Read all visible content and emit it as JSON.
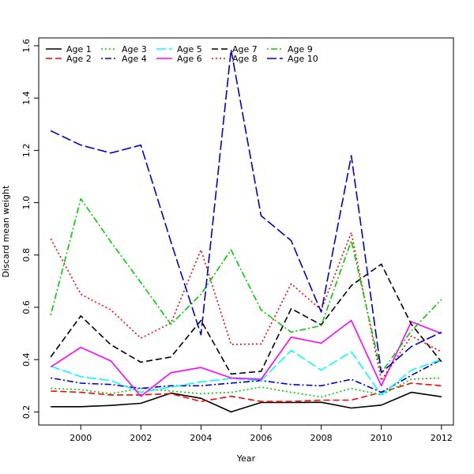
{
  "chart_data": {
    "type": "line",
    "title": "",
    "xlabel": "Year",
    "ylabel": "Discard mean weight",
    "x": [
      1999,
      2000,
      2001,
      2002,
      2003,
      2004,
      2005,
      2006,
      2007,
      2008,
      2009,
      2010,
      2011,
      2012
    ],
    "xlim": [
      1998.6,
      2012.4
    ],
    "ylim": [
      0.15,
      1.63
    ],
    "xticks": [
      2000,
      2002,
      2004,
      2006,
      2008,
      2010,
      2012
    ],
    "yticks": [
      0.2,
      0.4,
      0.6,
      0.8,
      1.0,
      1.2,
      1.4,
      1.6
    ],
    "xtick_labels": [
      "2000",
      "2002",
      "2004",
      "2006",
      "2008",
      "2010",
      "2012"
    ],
    "ytick_labels": [
      "0.2",
      "0.4",
      "0.6",
      "0.8",
      "1.0",
      "1.2",
      "1.4",
      "1.6"
    ],
    "legend_position": "top-left",
    "grid": false,
    "series": [
      {
        "name": "Age 1",
        "color": "#000000",
        "dash": "solid",
        "values": [
          0.22,
          0.22,
          0.225,
          0.233,
          0.272,
          0.252,
          0.2,
          0.236,
          0.236,
          0.237,
          0.215,
          0.226,
          0.275,
          0.258
        ]
      },
      {
        "name": "Age 2",
        "color": "#ff0000",
        "dash": "dashed",
        "values": [
          0.28,
          0.275,
          0.265,
          0.265,
          0.27,
          0.24,
          0.26,
          0.24,
          0.24,
          0.245,
          0.245,
          0.275,
          0.31,
          0.3
        ]
      },
      {
        "name": "Age 3",
        "color": "#00cd00",
        "dash": "dotted",
        "values": [
          0.29,
          0.285,
          0.27,
          0.29,
          0.28,
          0.27,
          0.275,
          0.295,
          0.275,
          0.257,
          0.29,
          0.265,
          0.325,
          0.33
        ]
      },
      {
        "name": "Age 4",
        "color": "#0000cd",
        "dash": "dotdash",
        "values": [
          0.33,
          0.31,
          0.305,
          0.29,
          0.3,
          0.3,
          0.31,
          0.32,
          0.305,
          0.3,
          0.325,
          0.275,
          0.34,
          0.4
        ]
      },
      {
        "name": "Age 5",
        "color": "#00ffff",
        "dash": "longdash",
        "values": [
          0.375,
          0.335,
          0.32,
          0.275,
          0.295,
          0.315,
          0.328,
          0.32,
          0.435,
          0.36,
          0.43,
          0.265,
          0.36,
          0.4
        ]
      },
      {
        "name": "Age 6",
        "color": "#ff00ff",
        "dash": "solid",
        "values": [
          0.372,
          0.447,
          0.395,
          0.26,
          0.35,
          0.37,
          0.33,
          0.325,
          0.486,
          0.463,
          0.55,
          0.3,
          0.545,
          0.5
        ]
      },
      {
        "name": "Age 7",
        "color": "#000000",
        "dash": "dashed",
        "values": [
          0.41,
          0.567,
          0.457,
          0.39,
          0.41,
          0.55,
          0.345,
          0.355,
          0.595,
          0.533,
          0.683,
          0.765,
          0.535,
          0.392
        ]
      },
      {
        "name": "Age 8",
        "color": "#ff0000",
        "dash": "dotted",
        "values": [
          0.862,
          0.65,
          0.59,
          0.482,
          0.54,
          0.82,
          0.458,
          0.46,
          0.69,
          0.59,
          0.886,
          0.32,
          0.49,
          0.43
        ]
      },
      {
        "name": "Age 9",
        "color": "#00cd00",
        "dash": "dotdash",
        "values": [
          0.57,
          1.015,
          0.85,
          0.695,
          0.535,
          0.65,
          0.82,
          0.59,
          0.505,
          0.53,
          0.855,
          0.35,
          0.51,
          0.63
        ]
      },
      {
        "name": "Age 10",
        "color": "#0000cd",
        "dash": "longdash",
        "values": [
          1.275,
          1.22,
          1.19,
          1.22,
          0.85,
          0.495,
          1.585,
          0.95,
          0.855,
          0.582,
          1.18,
          0.35,
          0.45,
          0.505
        ]
      }
    ]
  }
}
